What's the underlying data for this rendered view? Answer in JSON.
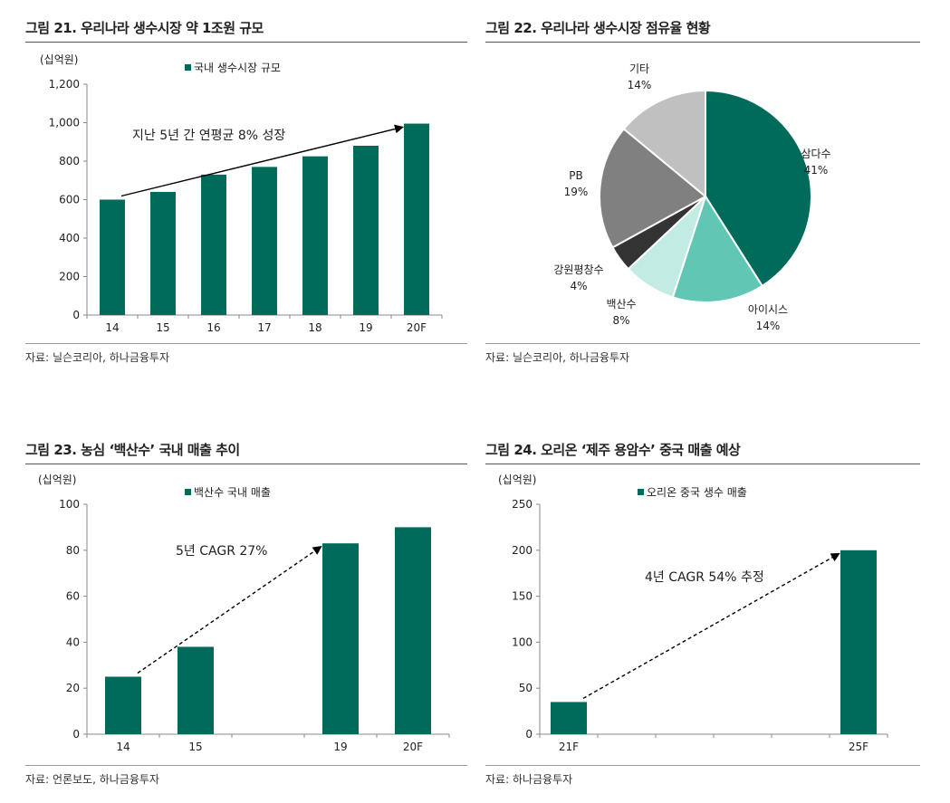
{
  "colors": {
    "bar": "#006b5a",
    "axis": "#888888"
  },
  "charts": [
    {
      "title": "그림 21. 우리나라 생수시장 약 1조원 규모",
      "source": "자료: 닐슨코리아, 하나금융투자",
      "unit": "(십억원)",
      "legend": "국내 생수시장 규모",
      "annotation": "지난 5년 간 연평균 8% 성장"
    },
    {
      "title": "그림 22. 우리나라 생수시장 점유율 현황",
      "source": "자료: 닐슨코리아, 하나금융투자"
    },
    {
      "title": "그림 23. 농심 ‘백산수’ 국내 매출 추이",
      "source": "자료: 언론보도, 하나금융투자",
      "unit": "(십억원)",
      "legend": "백산수 국내 매출",
      "annotation": "5년 CAGR 27%"
    },
    {
      "title": "그림 24. 오리온 ‘제주 용암수’ 중국 매출 예상",
      "source": "자료: 하나금융투자",
      "unit": "(십억원)",
      "legend": "오리온 중국 생수 매출",
      "annotation": "4년 CAGR 54% 추정"
    }
  ],
  "chart_data": [
    {
      "type": "bar",
      "title": "그림 21. 우리나라 생수시장 약 1조원 규모",
      "categories": [
        "14",
        "15",
        "16",
        "17",
        "18",
        "19",
        "20F"
      ],
      "series": [
        {
          "name": "국내 생수시장 규모",
          "values": [
            600,
            640,
            730,
            770,
            825,
            880,
            995
          ]
        }
      ],
      "ylim": [
        0,
        1200
      ],
      "yticks": [
        "0",
        "200",
        "400",
        "600",
        "800",
        "1,000",
        "1,200"
      ],
      "ylabel": "(십억원)",
      "grid": false,
      "legend": "top-left"
    },
    {
      "type": "pie",
      "title": "그림 22. 우리나라 생수시장 점유율 현황",
      "slices": [
        {
          "label": "삼다수",
          "value": 41,
          "pct": "41%",
          "color": "#006b5a"
        },
        {
          "label": "아이시스",
          "value": 14,
          "pct": "14%",
          "color": "#5fc7b4"
        },
        {
          "label": "백산수",
          "value": 8,
          "pct": "8%",
          "color": "#c2ebe4"
        },
        {
          "label": "강원평창수",
          "value": 4,
          "pct": "4%",
          "color": "#333333"
        },
        {
          "label": "PB",
          "value": 19,
          "pct": "19%",
          "color": "#808080"
        },
        {
          "label": "기타",
          "value": 14,
          "pct": "14%",
          "color": "#c0c0c0"
        }
      ]
    },
    {
      "type": "bar",
      "title": "그림 23. 농심 ‘백산수’ 국내 매출 추이",
      "categories": [
        "14",
        "15",
        "",
        "19",
        "20F"
      ],
      "series": [
        {
          "name": "백산수 국내 매출",
          "values": [
            25,
            38,
            null,
            83,
            90
          ]
        }
      ],
      "ylim": [
        0,
        100
      ],
      "yticks": [
        "0",
        "20",
        "40",
        "60",
        "80",
        "100"
      ],
      "ylabel": "(십억원)",
      "grid": false,
      "legend": "top-left"
    },
    {
      "type": "bar",
      "title": "그림 24. 오리온 ‘제주 용암수’ 중국 매출 예상",
      "categories": [
        "21F",
        "",
        "",
        "",
        "",
        "25F"
      ],
      "series": [
        {
          "name": "오리온 중국 생수 매출",
          "values": [
            35,
            null,
            null,
            null,
            null,
            200
          ]
        }
      ],
      "ylim": [
        0,
        250
      ],
      "yticks": [
        "0",
        "50",
        "100",
        "150",
        "200",
        "250"
      ],
      "ylabel": "(십억원)",
      "grid": false,
      "legend": "top-left"
    }
  ]
}
